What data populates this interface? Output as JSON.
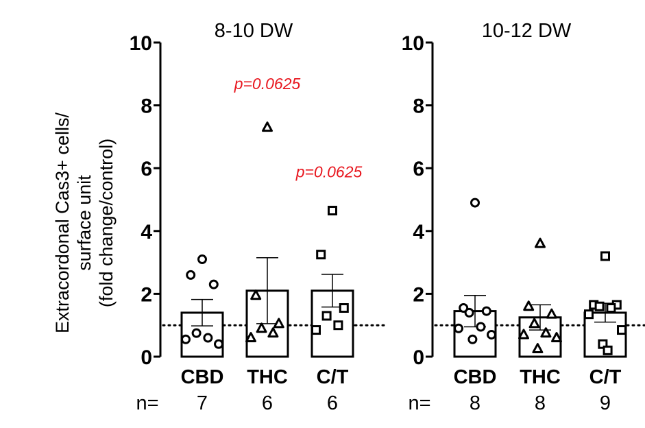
{
  "y_axis_label": [
    "Extracordonal Cas3+ cells/",
    "surface unit",
    "(fold change/control)"
  ],
  "n_label": "n=",
  "chart_data": [
    {
      "type": "bar",
      "title": "8-10 DW",
      "categories": [
        "CBD",
        "THC",
        "C/T"
      ],
      "ylim": [
        0,
        10
      ],
      "yticks": [
        0,
        2,
        4,
        6,
        8,
        10
      ],
      "reference_line": 1,
      "values": [
        1.4,
        2.1,
        2.1
      ],
      "error": [
        0.42,
        1.05,
        0.52
      ],
      "n": [
        "7",
        "6",
        "6"
      ],
      "markers": [
        "circle",
        "triangle",
        "square"
      ],
      "points": [
        [
          3.1,
          2.6,
          2.3,
          0.75,
          0.6,
          0.55,
          0.4
        ],
        [
          7.3,
          1.95,
          1.05,
          0.9,
          0.75,
          0.6
        ],
        [
          4.65,
          3.25,
          1.55,
          1.3,
          1.0,
          0.85
        ]
      ],
      "annotations": [
        {
          "text": "p=0.0625",
          "category": "THC",
          "y": 8.6,
          "color": "#e8171f"
        },
        {
          "text": "p=0.0625",
          "category": "C/T",
          "y": 5.8,
          "color": "#e8171f"
        }
      ]
    },
    {
      "type": "bar",
      "title": "10-12 DW",
      "categories": [
        "CBD",
        "THC",
        "C/T"
      ],
      "ylim": [
        0,
        10
      ],
      "yticks": [
        0,
        2,
        4,
        6,
        8,
        10
      ],
      "reference_line": 1,
      "values": [
        1.45,
        1.25,
        1.4
      ],
      "error": [
        0.5,
        0.4,
        0.3
      ],
      "n": [
        "8",
        "8",
        "9"
      ],
      "markers": [
        "circle",
        "triangle",
        "square"
      ],
      "points": [
        [
          4.9,
          1.55,
          1.45,
          1.4,
          0.95,
          0.9,
          0.7,
          0.55
        ],
        [
          3.6,
          1.6,
          1.35,
          1.05,
          0.75,
          0.7,
          0.6,
          0.25
        ],
        [
          3.2,
          1.65,
          1.65,
          1.6,
          1.55,
          1.35,
          0.85,
          0.4,
          0.2
        ]
      ],
      "annotations": []
    }
  ]
}
